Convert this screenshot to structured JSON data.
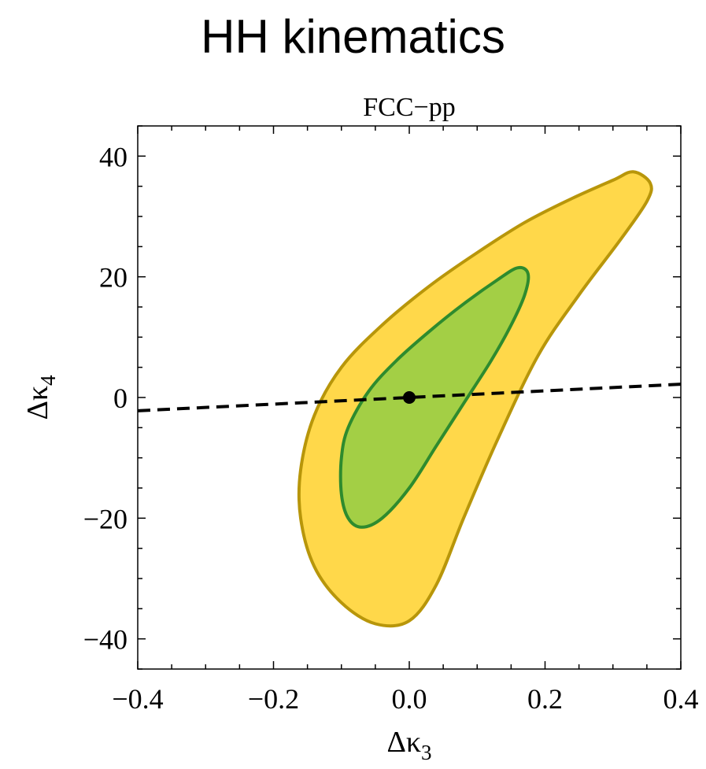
{
  "chart_data": {
    "type": "contour",
    "title": "HH kinematics",
    "subtitle": "FCC−pp",
    "xlabel": {
      "symbol": "Δκ",
      "subscript": "3"
    },
    "ylabel": {
      "symbol": "Δκ",
      "subscript": "4"
    },
    "xlim": [
      -0.4,
      0.4
    ],
    "ylim": [
      -45,
      45
    ],
    "x_ticks": [
      {
        "value": -0.4,
        "label": "−0.4"
      },
      {
        "value": -0.2,
        "label": "−0.2"
      },
      {
        "value": 0.0,
        "label": "0.0"
      },
      {
        "value": 0.2,
        "label": "0.2"
      },
      {
        "value": 0.4,
        "label": "0.4"
      }
    ],
    "y_ticks": [
      {
        "value": 40,
        "label": "40"
      },
      {
        "value": 20,
        "label": "20"
      },
      {
        "value": 0,
        "label": "0"
      },
      {
        "value": -20,
        "label": "−20"
      },
      {
        "value": -40,
        "label": "−40"
      }
    ],
    "colors": {
      "outer_fill": "#FFD84A",
      "outer_edge": "#B8960A",
      "inner_fill": "#A3CF45",
      "inner_edge": "#2E8B2E",
      "line": "#000000",
      "point": "#000000"
    },
    "regions": [
      {
        "level": "outer",
        "contour": [
          [
            0.33,
            37.4
          ],
          [
            0.355,
            35.5
          ],
          [
            0.35,
            32.5
          ],
          [
            0.31,
            26
          ],
          [
            0.25,
            17
          ],
          [
            0.19,
            7
          ],
          [
            0.13,
            -7
          ],
          [
            0.08,
            -20
          ],
          [
            0.04,
            -31
          ],
          [
            0.0,
            -37
          ],
          [
            -0.05,
            -37.5
          ],
          [
            -0.1,
            -34
          ],
          [
            -0.14,
            -28
          ],
          [
            -0.16,
            -20
          ],
          [
            -0.16,
            -12
          ],
          [
            -0.14,
            -3
          ],
          [
            -0.1,
            5
          ],
          [
            -0.04,
            12
          ],
          [
            0.03,
            18.5
          ],
          [
            0.1,
            24
          ],
          [
            0.17,
            29
          ],
          [
            0.24,
            33
          ],
          [
            0.3,
            36
          ]
        ]
      },
      {
        "level": "inner",
        "contour": [
          [
            0.16,
            21.5
          ],
          [
            0.175,
            20.5
          ],
          [
            0.17,
            17
          ],
          [
            0.15,
            12
          ],
          [
            0.12,
            6
          ],
          [
            0.08,
            -1
          ],
          [
            0.04,
            -8
          ],
          [
            0.0,
            -15
          ],
          [
            -0.04,
            -20
          ],
          [
            -0.07,
            -21.5
          ],
          [
            -0.09,
            -20
          ],
          [
            -0.1,
            -16
          ],
          [
            -0.1,
            -10
          ],
          [
            -0.09,
            -5
          ],
          [
            -0.06,
            1
          ],
          [
            -0.02,
            6
          ],
          [
            0.03,
            11
          ],
          [
            0.08,
            15.5
          ],
          [
            0.13,
            19.5
          ]
        ]
      }
    ],
    "line": {
      "style": "dashed",
      "points": [
        [
          -0.4,
          -2.2
        ],
        [
          0.4,
          2.2
        ]
      ]
    },
    "point": {
      "x": 0.0,
      "y": 0.0
    }
  }
}
